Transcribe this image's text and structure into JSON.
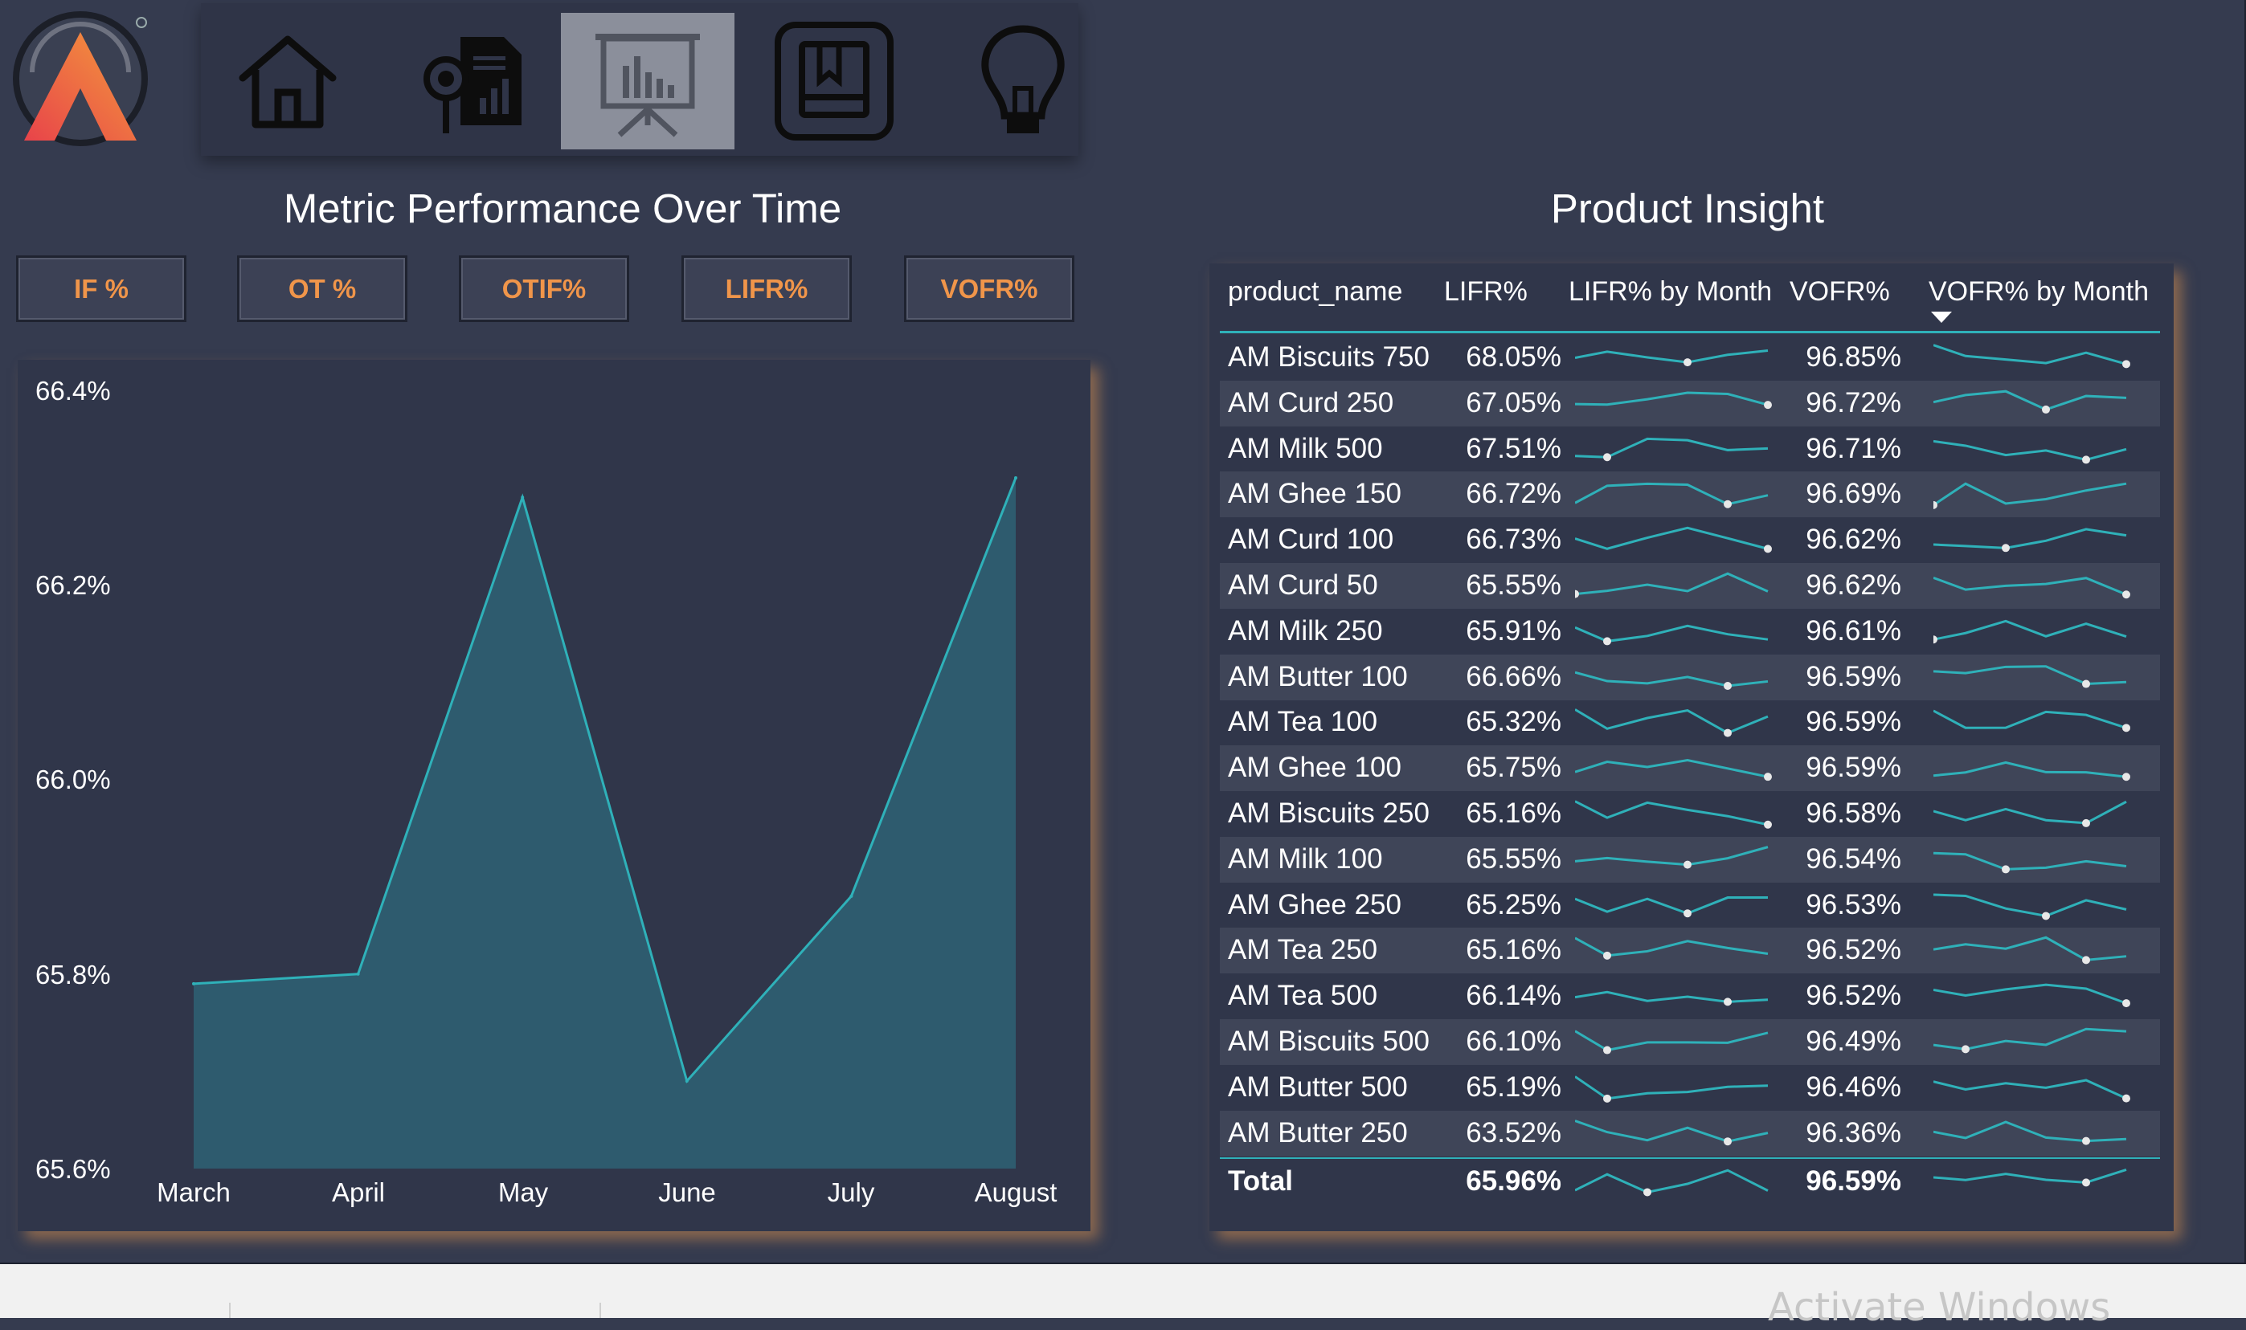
{
  "nav": {
    "logo": "brand-logo",
    "items": [
      {
        "icon": "home-icon",
        "active": false
      },
      {
        "icon": "report-analysis-icon",
        "active": false
      },
      {
        "icon": "presentation-chart-icon",
        "active": true
      },
      {
        "icon": "bookmark-icon",
        "active": false
      },
      {
        "icon": "lightbulb-icon",
        "active": false
      }
    ]
  },
  "colors": {
    "accent": "#f0954a",
    "teal": "#2fb1b9",
    "area_fill": "#2e5b6e",
    "background": "#353b4f"
  },
  "chart_title": "Metric Performance Over Time",
  "metric_buttons": [
    "IF %",
    "OT %",
    "OTIF%",
    "LIFR%",
    "VOFR%"
  ],
  "chart_data": {
    "type": "area",
    "categories": [
      "March",
      "April",
      "May",
      "June",
      "July",
      "August"
    ],
    "values": [
      65.79,
      65.8,
      66.29,
      65.69,
      65.88,
      66.31
    ],
    "y_tick_labels": [
      "66.4%",
      "66.2%",
      "66.0%",
      "65.8%",
      "65.6%"
    ],
    "ylim": [
      65.6,
      66.4
    ],
    "grid": false
  },
  "table": {
    "title": "Product Insight",
    "headers": [
      "product_name",
      "LIFR%",
      "LIFR% by Month",
      "VOFR%",
      "VOFR% by Month"
    ],
    "sorted_column": "VOFR% by Month",
    "rows": [
      {
        "name": "AM Biscuits 750",
        "lifr": "68.05%",
        "vofr": "96.85%"
      },
      {
        "name": "AM Curd 250",
        "lifr": "67.05%",
        "vofr": "96.72%"
      },
      {
        "name": "AM Milk 500",
        "lifr": "67.51%",
        "vofr": "96.71%"
      },
      {
        "name": "AM Ghee 150",
        "lifr": "66.72%",
        "vofr": "96.69%"
      },
      {
        "name": "AM Curd 100",
        "lifr": "66.73%",
        "vofr": "96.62%"
      },
      {
        "name": "AM Curd 50",
        "lifr": "65.55%",
        "vofr": "96.62%"
      },
      {
        "name": "AM Milk 250",
        "lifr": "65.91%",
        "vofr": "96.61%"
      },
      {
        "name": "AM Butter 100",
        "lifr": "66.66%",
        "vofr": "96.59%"
      },
      {
        "name": "AM Tea 100",
        "lifr": "65.32%",
        "vofr": "96.59%"
      },
      {
        "name": "AM Ghee 100",
        "lifr": "65.75%",
        "vofr": "96.59%"
      },
      {
        "name": "AM Biscuits 250",
        "lifr": "65.16%",
        "vofr": "96.58%"
      },
      {
        "name": "AM Milk 100",
        "lifr": "65.55%",
        "vofr": "96.54%"
      },
      {
        "name": "AM Ghee 250",
        "lifr": "65.25%",
        "vofr": "96.53%"
      },
      {
        "name": "AM Tea 250",
        "lifr": "65.16%",
        "vofr": "96.52%"
      },
      {
        "name": "AM Tea 500",
        "lifr": "66.14%",
        "vofr": "96.52%"
      },
      {
        "name": "AM Biscuits 500",
        "lifr": "66.10%",
        "vofr": "96.49%"
      },
      {
        "name": "AM Butter 500",
        "lifr": "65.19%",
        "vofr": "96.46%"
      },
      {
        "name": "AM Butter 250",
        "lifr": "63.52%",
        "vofr": "96.36%"
      }
    ],
    "total": {
      "name": "Total",
      "lifr": "65.96%",
      "vofr": "96.59%"
    }
  },
  "watermark": "Activate Windows"
}
